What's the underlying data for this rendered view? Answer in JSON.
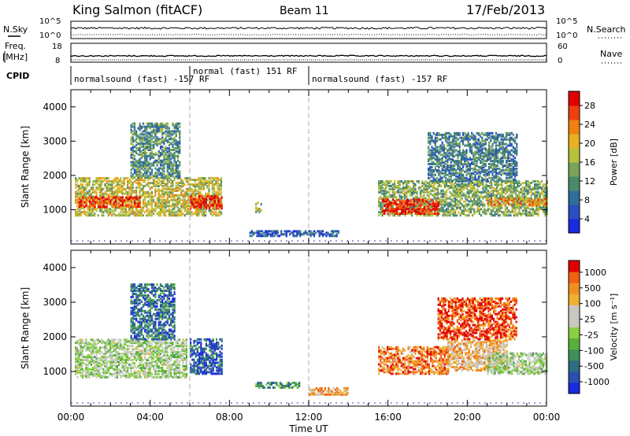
{
  "header": {
    "title": "King Salmon (fitACF)",
    "beam": "Beam 11",
    "date": "17/Feb/2013"
  },
  "panels": {
    "nsky": {
      "left_label": "N.Sky",
      "right_label": "N.Search",
      "left_ticks": [
        "10^5",
        "10^0"
      ],
      "right_ticks": [
        "10^5",
        "10^0"
      ]
    },
    "freq": {
      "left_label": "Freq.",
      "left_unit": "[MHz]",
      "right_label": "Nave",
      "left_ticks": [
        "18",
        "8"
      ],
      "right_ticks": [
        "60",
        "0"
      ]
    },
    "cpid": {
      "label": "CPID",
      "segments": [
        {
          "start_hour": 0,
          "end_hour": 6,
          "text": "normalsound (fast) -157 RF"
        },
        {
          "start_hour": 6,
          "end_hour": 12,
          "text": "normal (fast) 151 RF"
        },
        {
          "start_hour": 12,
          "end_hour": 24,
          "text": "normalsound (fast) -157 RF"
        }
      ]
    }
  },
  "chart_data": [
    {
      "type": "heatmap",
      "name": "power",
      "ylabel": "Slant Range [km]",
      "xlabel": "",
      "xlim": [
        0,
        24
      ],
      "ylim": [
        0,
        4500
      ],
      "x_ticks": [
        "00:00",
        "04:00",
        "08:00",
        "12:00",
        "16:00",
        "20:00",
        "00:00"
      ],
      "y_ticks": [
        1000,
        2000,
        3000,
        4000
      ],
      "colorbar": {
        "label": "Power [dB]",
        "ticks": [
          "28",
          "24",
          "20",
          "16",
          "12",
          "8",
          "4"
        ],
        "colors": [
          "#1a2ae0",
          "#2a4fc0",
          "#2d6e9a",
          "#4a8a6a",
          "#7aa35a",
          "#b6c23a",
          "#e8b022",
          "#f08010",
          "#f04010",
          "#e00000"
        ]
      },
      "regions": [
        {
          "x0": 0.2,
          "x1": 7.6,
          "y0": 800,
          "y1": 1900,
          "level": 0.55
        },
        {
          "x0": 0.3,
          "x1": 3.5,
          "y0": 1050,
          "y1": 1350,
          "level": 0.85
        },
        {
          "x0": 6.0,
          "x1": 7.6,
          "y0": 1000,
          "y1": 1400,
          "level": 0.9
        },
        {
          "x0": 3.0,
          "x1": 5.5,
          "y0": 1900,
          "y1": 3500,
          "level": 0.35
        },
        {
          "x0": 9.3,
          "x1": 9.6,
          "y0": 900,
          "y1": 1200,
          "level": 0.5
        },
        {
          "x0": 9.0,
          "x1": 13.5,
          "y0": 200,
          "y1": 350,
          "level": 0.2
        },
        {
          "x0": 15.5,
          "x1": 24.0,
          "y0": 800,
          "y1": 1800,
          "level": 0.45
        },
        {
          "x0": 15.7,
          "x1": 18.5,
          "y0": 850,
          "y1": 1300,
          "level": 0.9
        },
        {
          "x0": 18.0,
          "x1": 22.5,
          "y0": 1800,
          "y1": 3200,
          "level": 0.3
        },
        {
          "x0": 21.0,
          "x1": 24.0,
          "y0": 1100,
          "y1": 1300,
          "level": 0.7
        }
      ]
    },
    {
      "type": "heatmap",
      "name": "velocity",
      "ylabel": "Slant Range [km]",
      "xlabel": "Time UT",
      "xlim": [
        0,
        24
      ],
      "ylim": [
        0,
        4500
      ],
      "x_ticks": [
        "00:00",
        "04:00",
        "08:00",
        "12:00",
        "16:00",
        "20:00",
        "00:00"
      ],
      "y_ticks": [
        1000,
        2000,
        3000,
        4000
      ],
      "colorbar": {
        "label": "Velocity [m s⁻¹]",
        "ticks": [
          "1000",
          "500",
          "100",
          "25",
          "-25",
          "-100",
          "-500",
          "-1000"
        ],
        "colors": [
          "#1a2ae0",
          "#2a4fb0",
          "#2d6e80",
          "#3e8f5a",
          "#58b03a",
          "#8ad040",
          "#c8c8c0",
          "#c8c8c0",
          "#f0b030",
          "#f09020",
          "#f06010",
          "#e00000"
        ]
      },
      "regions": [
        {
          "x0": 0.2,
          "x1": 5.8,
          "y0": 800,
          "y1": 1900,
          "level": 0.5
        },
        {
          "x0": 6.0,
          "x1": 7.6,
          "y0": 900,
          "y1": 1900,
          "level": 0.15
        },
        {
          "x0": 3.0,
          "x1": 5.2,
          "y0": 1900,
          "y1": 3500,
          "level": 0.2
        },
        {
          "x0": 9.3,
          "x1": 11.5,
          "y0": 500,
          "y1": 650,
          "level": 0.3
        },
        {
          "x0": 12.0,
          "x1": 14.0,
          "y0": 300,
          "y1": 500,
          "level": 0.75
        },
        {
          "x0": 15.5,
          "x1": 19.0,
          "y0": 900,
          "y1": 1700,
          "level": 0.82
        },
        {
          "x0": 19.0,
          "x1": 22.0,
          "y0": 1000,
          "y1": 1900,
          "level": 0.7
        },
        {
          "x0": 21.0,
          "x1": 24.0,
          "y0": 900,
          "y1": 1500,
          "level": 0.5
        },
        {
          "x0": 18.5,
          "x1": 22.5,
          "y0": 1900,
          "y1": 3100,
          "level": 0.9
        }
      ]
    }
  ]
}
